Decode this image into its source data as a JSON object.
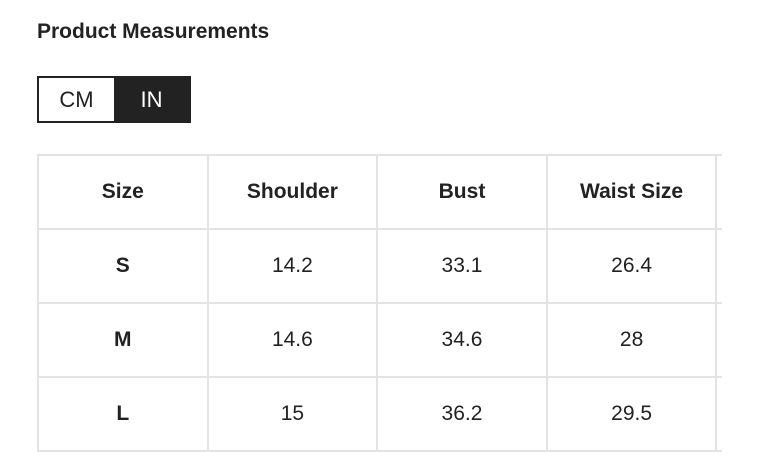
{
  "title": "Product Measurements",
  "unit_toggle": {
    "options": [
      "CM",
      "IN"
    ],
    "selected": "IN"
  },
  "table": {
    "headers": [
      "Size",
      "Shoulder",
      "Bust",
      "Waist Size"
    ],
    "rows": [
      [
        "S",
        "14.2",
        "33.1",
        "26.4"
      ],
      [
        "M",
        "14.6",
        "34.6",
        "28"
      ],
      [
        "L",
        "15",
        "36.2",
        "29.5"
      ]
    ]
  }
}
